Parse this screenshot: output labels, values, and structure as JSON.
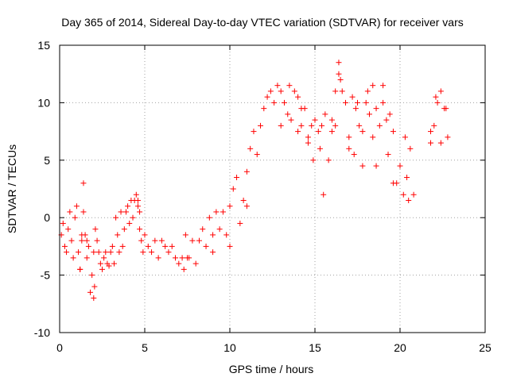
{
  "chart_data": {
    "type": "scatter",
    "title": "Day 365 of 2014, Sidereal Day-to-day VTEC variation (SDTVAR) for receiver vars",
    "xlabel": "GPS time / hours",
    "ylabel": "SDTVAR / TECUs",
    "xlim": [
      0,
      25
    ],
    "ylim": [
      -10,
      15
    ],
    "xticks": [
      0,
      5,
      10,
      15,
      20,
      25
    ],
    "yticks": [
      -10,
      -5,
      0,
      5,
      10,
      15
    ],
    "xtick_labels": [
      "0",
      "5",
      "10",
      "15",
      "20",
      "25"
    ],
    "ytick_labels": [
      "-10",
      "-5",
      "0",
      "5",
      "10",
      "15"
    ],
    "grid": true,
    "marker": "+",
    "marker_color": "#ff0000",
    "series": [
      {
        "name": "SDTVAR",
        "x": [
          0.1,
          0.2,
          0.3,
          0.4,
          0.5,
          0.6,
          0.7,
          0.8,
          0.9,
          1.0,
          1.1,
          1.2,
          1.3,
          1.4,
          1.5,
          1.6,
          1.7,
          1.8,
          1.9,
          2.0,
          2.1,
          2.2,
          2.3,
          2.4,
          2.5,
          2.6,
          2.7,
          2.8,
          2.9,
          3.0,
          3.1,
          3.2,
          3.3,
          3.4,
          3.5,
          3.6,
          3.7,
          3.8,
          3.9,
          4.0,
          4.1,
          4.2,
          4.3,
          4.4,
          4.5,
          4.6,
          4.7,
          4.8,
          4.9,
          5.0,
          5.2,
          5.4,
          5.6,
          5.8,
          6.0,
          6.2,
          6.4,
          6.6,
          6.8,
          7.0,
          7.2,
          7.4,
          7.6,
          7.8,
          8.0,
          8.2,
          8.4,
          8.6,
          8.8,
          9.0,
          9.2,
          9.4,
          9.6,
          9.8,
          10.0,
          10.2,
          10.4,
          10.6,
          10.8,
          11.0,
          11.2,
          11.4,
          11.6,
          11.8,
          12.0,
          12.2,
          12.4,
          12.6,
          12.8,
          13.0,
          13.2,
          13.4,
          13.6,
          13.8,
          14.0,
          14.2,
          14.4,
          14.6,
          14.8,
          15.0,
          15.2,
          15.4,
          15.6,
          15.8,
          16.0,
          16.2,
          16.4,
          16.6,
          16.8,
          17.0,
          17.2,
          17.4,
          17.6,
          17.8,
          18.0,
          18.2,
          18.4,
          18.6,
          18.8,
          19.0,
          19.2,
          19.4,
          19.6,
          19.8,
          20.0,
          20.2,
          20.4,
          20.6,
          20.8,
          21.8,
          22.0,
          22.2,
          22.4,
          22.6,
          22.8
        ],
        "y": [
          -1.5,
          -0.5,
          -2.5,
          -3.0,
          -1.0,
          0.5,
          -2.0,
          -3.5,
          0.0,
          1.0,
          -3.0,
          -4.5,
          -2.0,
          3.0,
          -1.5,
          -3.5,
          -2.5,
          -6.5,
          -5.0,
          -3.0,
          -1.0,
          -2.0,
          -3.0,
          -4.0,
          -4.5,
          -3.5,
          -3.0,
          -4.0,
          -4.2,
          -3.0,
          -2.5,
          -4.0,
          0.0,
          -1.5,
          -3.0,
          0.5,
          -2.5,
          -1.0,
          0.5,
          1.0,
          -0.5,
          1.5,
          0.0,
          1.5,
          2.0,
          1.0,
          -1.0,
          -2.0,
          -3.0,
          -1.5,
          -2.5,
          -3.0,
          -2.0,
          -3.5,
          -2.0,
          -2.5,
          -3.0,
          -2.5,
          -3.5,
          -4.0,
          -3.5,
          -1.5,
          -3.5,
          -2.0,
          -4.0,
          -2.0,
          -1.0,
          -2.5,
          0.0,
          -1.5,
          0.5,
          -1.0,
          0.5,
          -1.5,
          1.0,
          2.5,
          3.5,
          -0.5,
          1.5,
          4.0,
          6.0,
          7.5,
          5.5,
          8.0,
          9.5,
          10.5,
          11.0,
          10.0,
          11.5,
          11.0,
          10.0,
          9.0,
          8.5,
          11.0,
          10.5,
          8.0,
          9.5,
          7.0,
          8.0,
          8.5,
          7.5,
          8.0,
          9.0,
          5.0,
          8.5,
          8.0,
          12.5,
          11.0,
          10.0,
          7.0,
          10.5,
          9.5,
          8.0,
          7.5,
          10.0,
          9.0,
          11.5,
          9.5,
          8.0,
          10.0,
          8.5,
          9.0,
          7.5,
          3.0,
          4.5,
          2.0,
          3.5,
          6.0,
          2.0,
          6.5,
          8.0,
          10.0,
          11.0,
          9.5,
          7.0
        ],
        "extra_points": {
          "x": [
            1.2,
            1.3,
            1.4,
            1.6,
            2.0,
            2.05,
            4.6,
            4.7,
            7.3,
            7.5,
            9.0,
            10.0,
            11.0,
            13.0,
            13.5,
            14.0,
            14.2,
            14.6,
            14.9,
            15.3,
            15.5,
            16.0,
            16.2,
            16.4,
            16.5,
            17.0,
            17.3,
            17.5,
            17.8,
            18.1,
            18.4,
            18.6,
            19.0,
            19.3,
            19.6,
            20.3,
            20.5,
            21.8,
            22.1,
            22.4,
            22.7
          ],
          "y": [
            -4.5,
            -1.5,
            0.5,
            -2.0,
            -7.0,
            -6.0,
            1.5,
            0.5,
            -4.5,
            -3.5,
            -3.0,
            -2.5,
            1.0,
            8.0,
            11.5,
            7.5,
            9.5,
            6.5,
            5.0,
            6.0,
            2.0,
            7.5,
            11.0,
            13.5,
            12.0,
            6.0,
            5.5,
            10.0,
            4.5,
            11.0,
            7.0,
            4.5,
            11.5,
            5.5,
            3.0,
            7.0,
            1.5,
            7.5,
            10.5,
            6.5,
            9.5
          ]
        }
      }
    ]
  }
}
